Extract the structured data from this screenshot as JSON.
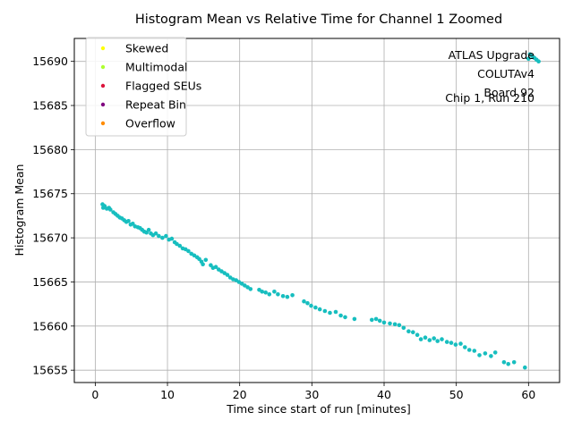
{
  "chart_data": {
    "type": "scatter",
    "title": "Histogram Mean vs Relative Time for Channel 1 Zoomed",
    "xlabel": "Time since start of run [minutes]",
    "ylabel": "Histogram Mean",
    "xlim": [
      -2.9,
      64.3
    ],
    "ylim": [
      15653.6,
      15692.6
    ],
    "xticks": [
      0,
      10,
      20,
      30,
      40,
      50,
      60
    ],
    "yticks": [
      15655,
      15660,
      15665,
      15670,
      15675,
      15680,
      15685,
      15690
    ],
    "grid": true,
    "legend_position": "top-left",
    "annotation": [
      "ATLAS Upgrade",
      "COLUTAv4",
      "Board 92",
      "Chip 1, Run 210"
    ],
    "legend": [
      {
        "label": "Skewed",
        "color": "#ffff00"
      },
      {
        "label": "Multimodal",
        "color": "#adff2f"
      },
      {
        "label": "Flagged SEUs",
        "color": "#dc143c"
      },
      {
        "label": "Repeat Bin",
        "color": "#800080"
      },
      {
        "label": "Overflow",
        "color": "#ff8c00"
      }
    ],
    "series": [
      {
        "color": "#17bebf",
        "points": [
          [
            1.0,
            15673.8
          ],
          [
            1.1,
            15673.4
          ],
          [
            1.3,
            15673.6
          ],
          [
            1.6,
            15673.3
          ],
          [
            1.9,
            15673.4
          ],
          [
            2.1,
            15673.2
          ],
          [
            2.5,
            15672.9
          ],
          [
            2.8,
            15672.7
          ],
          [
            3.1,
            15672.5
          ],
          [
            3.4,
            15672.3
          ],
          [
            3.7,
            15672.2
          ],
          [
            4.0,
            15672.0
          ],
          [
            4.3,
            15671.8
          ],
          [
            4.6,
            15671.9
          ],
          [
            4.9,
            15671.5
          ],
          [
            5.2,
            15671.6
          ],
          [
            5.5,
            15671.3
          ],
          [
            5.9,
            15671.2
          ],
          [
            6.2,
            15671.1
          ],
          [
            6.5,
            15670.9
          ],
          [
            6.8,
            15670.7
          ],
          [
            7.1,
            15670.6
          ],
          [
            7.4,
            15670.9
          ],
          [
            7.7,
            15670.5
          ],
          [
            8.0,
            15670.3
          ],
          [
            8.4,
            15670.5
          ],
          [
            8.8,
            15670.2
          ],
          [
            9.3,
            15670.0
          ],
          [
            9.8,
            15670.2
          ],
          [
            10.2,
            15669.8
          ],
          [
            10.6,
            15669.9
          ],
          [
            11.0,
            15669.5
          ],
          [
            11.3,
            15669.3
          ],
          [
            11.7,
            15669.1
          ],
          [
            12.1,
            15668.8
          ],
          [
            12.5,
            15668.7
          ],
          [
            12.9,
            15668.5
          ],
          [
            13.3,
            15668.2
          ],
          [
            13.7,
            15668.0
          ],
          [
            14.1,
            15667.8
          ],
          [
            14.4,
            15667.6
          ],
          [
            14.7,
            15667.3
          ],
          [
            14.9,
            15667.0
          ],
          [
            15.3,
            15667.5
          ],
          [
            16.0,
            15666.9
          ],
          [
            16.3,
            15666.6
          ],
          [
            16.7,
            15666.7
          ],
          [
            17.1,
            15666.4
          ],
          [
            17.5,
            15666.2
          ],
          [
            17.9,
            15666.0
          ],
          [
            18.3,
            15665.8
          ],
          [
            18.7,
            15665.5
          ],
          [
            19.1,
            15665.3
          ],
          [
            19.5,
            15665.2
          ],
          [
            19.9,
            15665.0
          ],
          [
            20.3,
            15664.8
          ],
          [
            20.7,
            15664.6
          ],
          [
            21.1,
            15664.4
          ],
          [
            21.5,
            15664.2
          ],
          [
            22.7,
            15664.1
          ],
          [
            23.1,
            15663.9
          ],
          [
            23.6,
            15663.8
          ],
          [
            24.1,
            15663.6
          ],
          [
            24.8,
            15663.9
          ],
          [
            25.3,
            15663.6
          ],
          [
            26.0,
            15663.4
          ],
          [
            26.6,
            15663.3
          ],
          [
            27.3,
            15663.5
          ],
          [
            28.9,
            15662.8
          ],
          [
            29.4,
            15662.6
          ],
          [
            29.9,
            15662.3
          ],
          [
            30.5,
            15662.1
          ],
          [
            31.1,
            15661.9
          ],
          [
            31.8,
            15661.7
          ],
          [
            32.5,
            15661.5
          ],
          [
            33.3,
            15661.6
          ],
          [
            34.0,
            15661.2
          ],
          [
            34.6,
            15661.0
          ],
          [
            35.9,
            15660.8
          ],
          [
            38.3,
            15660.7
          ],
          [
            38.9,
            15660.8
          ],
          [
            39.4,
            15660.6
          ],
          [
            40.0,
            15660.4
          ],
          [
            40.8,
            15660.3
          ],
          [
            41.5,
            15660.2
          ],
          [
            42.1,
            15660.1
          ],
          [
            42.7,
            15659.8
          ],
          [
            43.4,
            15659.4
          ],
          [
            44.0,
            15659.3
          ],
          [
            44.6,
            15659.0
          ],
          [
            45.1,
            15658.5
          ],
          [
            45.7,
            15658.7
          ],
          [
            46.3,
            15658.4
          ],
          [
            46.9,
            15658.6
          ],
          [
            47.4,
            15658.3
          ],
          [
            48.0,
            15658.5
          ],
          [
            48.7,
            15658.2
          ],
          [
            49.3,
            15658.1
          ],
          [
            49.9,
            15657.9
          ],
          [
            50.6,
            15658.0
          ],
          [
            51.2,
            15657.6
          ],
          [
            51.8,
            15657.3
          ],
          [
            52.5,
            15657.2
          ],
          [
            53.2,
            15656.7
          ],
          [
            54.0,
            15656.9
          ],
          [
            54.8,
            15656.6
          ],
          [
            55.4,
            15657.0
          ],
          [
            56.6,
            15655.9
          ],
          [
            57.2,
            15655.7
          ],
          [
            58.0,
            15655.9
          ],
          [
            59.5,
            15655.3
          ],
          [
            60.0,
            15690.3
          ],
          [
            60.2,
            15690.8
          ],
          [
            60.5,
            15690.6
          ],
          [
            60.8,
            15690.4
          ],
          [
            61.1,
            15690.2
          ],
          [
            61.4,
            15690.0
          ]
        ]
      }
    ]
  }
}
